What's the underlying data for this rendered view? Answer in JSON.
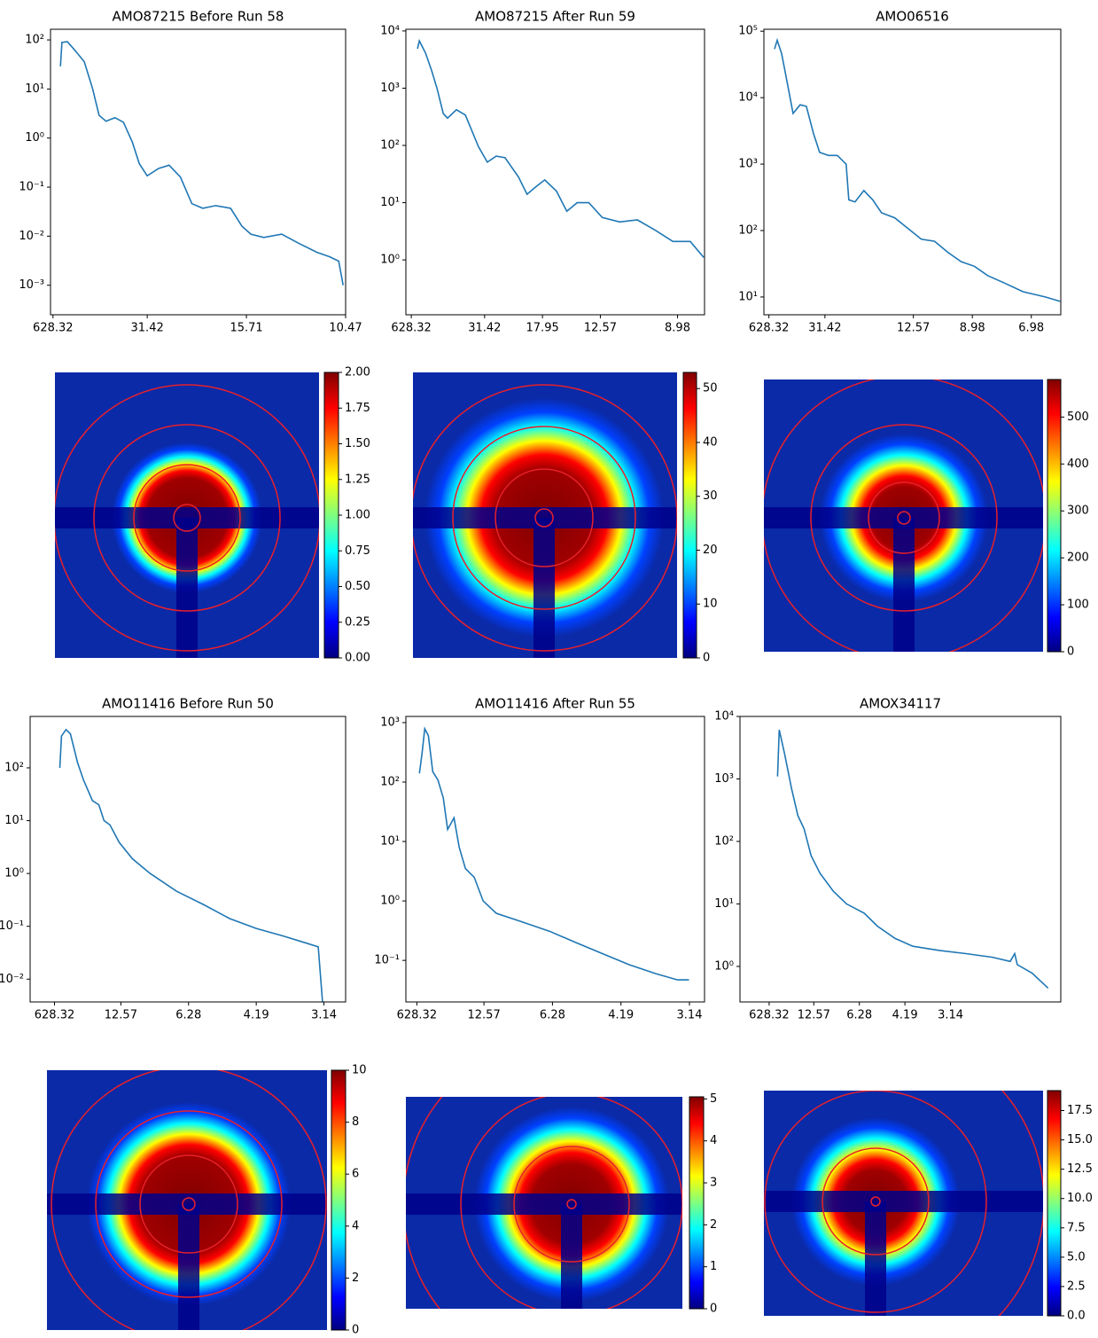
{
  "chart_data": [
    {
      "type": "line",
      "title": "AMO87215 Before Run 58",
      "color": "#1f77b4",
      "log_y": true,
      "x": [
        0.025,
        0.028,
        0.039,
        0.055,
        0.073,
        0.09,
        0.103,
        0.117,
        0.135,
        0.152,
        0.17,
        0.184,
        0.2,
        0.223,
        0.244,
        0.267,
        0.29,
        0.312,
        0.338,
        0.368,
        0.391,
        0.409,
        0.435,
        0.471,
        0.506,
        0.542,
        0.568,
        0.586,
        0.595
      ],
      "values": [
        29,
        89,
        92,
        60,
        36,
        10,
        2.9,
        2.2,
        2.6,
        2.1,
        0.83,
        0.3,
        0.17,
        0.24,
        0.28,
        0.16,
        0.046,
        0.037,
        0.042,
        0.037,
        0.016,
        0.011,
        0.0094,
        0.011,
        0.0071,
        0.0047,
        0.0038,
        0.0031,
        0.001
      ],
      "xlim": [
        0.005,
        0.6
      ],
      "xticks": [
        {
          "value": 0.01,
          "label": "628.32"
        },
        {
          "value": 0.2,
          "label": "31.42"
        },
        {
          "value": 0.4,
          "label": "15.71"
        },
        {
          "value": 0.6,
          "label": "10.47"
        }
      ],
      "ylim": [
        0.00025,
        165
      ],
      "yticks": [
        {
          "value": 0.001,
          "label": "10⁻³"
        },
        {
          "value": 0.01,
          "label": "10⁻²"
        },
        {
          "value": 0.1,
          "label": "10⁻¹"
        },
        {
          "value": 1,
          "label": "10⁰"
        },
        {
          "value": 10,
          "label": "10¹"
        },
        {
          "value": 100,
          "label": "10²"
        }
      ]
    },
    {
      "type": "line",
      "title": "AMO87215 After Run 59",
      "color": "#1f77b4",
      "log_y": true,
      "x": [
        0.026,
        0.031,
        0.047,
        0.063,
        0.077,
        0.093,
        0.104,
        0.127,
        0.15,
        0.184,
        0.207,
        0.23,
        0.253,
        0.288,
        0.31,
        0.333,
        0.356,
        0.386,
        0.413,
        0.44,
        0.47,
        0.505,
        0.55,
        0.596,
        0.642,
        0.688,
        0.733,
        0.768
      ],
      "values": [
        4900,
        6700,
        4100,
        2000,
        970,
        360,
        300,
        420,
        340,
        95,
        51,
        65,
        61,
        28,
        14,
        19,
        25,
        16,
        7.1,
        10,
        10,
        5.5,
        4.6,
        5,
        3.3,
        2.1,
        2.1,
        1.1
      ],
      "xlim": [
        -0.004,
        0.77
      ],
      "xticks": [
        {
          "value": 0.01,
          "label": "628.32"
        },
        {
          "value": 0.2,
          "label": "31.42"
        },
        {
          "value": 0.35,
          "label": "17.95"
        },
        {
          "value": 0.5,
          "label": "12.57"
        },
        {
          "value": 0.7,
          "label": "8.98"
        }
      ],
      "ylim": [
        0.11,
        10700
      ],
      "yticks": [
        {
          "value": 1,
          "label": "10⁰"
        },
        {
          "value": 10,
          "label": "10¹"
        },
        {
          "value": 100,
          "label": "10²"
        },
        {
          "value": 1000,
          "label": "10³"
        },
        {
          "value": 10000,
          "label": "10⁴"
        }
      ]
    },
    {
      "type": "line",
      "title": "AMO06516",
      "color": "#1f77b4",
      "log_y": true,
      "x": [
        0.029,
        0.038,
        0.053,
        0.071,
        0.092,
        0.116,
        0.137,
        0.161,
        0.182,
        0.212,
        0.242,
        0.272,
        0.281,
        0.302,
        0.332,
        0.362,
        0.392,
        0.437,
        0.482,
        0.527,
        0.572,
        0.617,
        0.662,
        0.707,
        0.752,
        0.812,
        0.872,
        0.947,
        0.998
      ],
      "values": [
        54000,
        73000,
        46000,
        18000,
        5800,
        7800,
        7400,
        2900,
        1500,
        1350,
        1350,
        1000,
        290,
        270,
        400,
        290,
        185,
        155,
        107,
        74,
        69,
        47,
        34,
        29,
        21,
        16,
        12,
        10,
        8.6
      ],
      "xlim": [
        -0.007,
        1.0
      ],
      "xticks": [
        {
          "value": 0.01,
          "label": "628.32"
        },
        {
          "value": 0.2,
          "label": "31.42"
        },
        {
          "value": 0.5,
          "label": "12.57"
        },
        {
          "value": 0.7,
          "label": "8.98"
        },
        {
          "value": 0.9,
          "label": "6.98"
        }
      ],
      "ylim": [
        5.4,
        107000
      ],
      "yticks": [
        {
          "value": 10,
          "label": "10¹"
        },
        {
          "value": 100,
          "label": "10²"
        },
        {
          "value": 1000,
          "label": "10³"
        },
        {
          "value": 10000,
          "label": "10⁴"
        },
        {
          "value": 100000,
          "label": "10⁵"
        }
      ]
    },
    {
      "type": "image",
      "colormap": "jet",
      "clim": [
        0,
        2
      ],
      "cticks": [
        {
          "value": 0,
          "label": "0.00"
        },
        {
          "value": 0.25,
          "label": "0.25"
        },
        {
          "value": 0.5,
          "label": "0.50"
        },
        {
          "value": 0.75,
          "label": "0.75"
        },
        {
          "value": 1,
          "label": "1.00"
        },
        {
          "value": 1.25,
          "label": "1.25"
        },
        {
          "value": 1.5,
          "label": "1.50"
        },
        {
          "value": 1.75,
          "label": "1.75"
        },
        {
          "value": 2,
          "label": "2.00"
        }
      ]
    },
    {
      "type": "image",
      "colormap": "jet",
      "clim": [
        0,
        53
      ],
      "cticks": [
        0,
        10,
        20,
        30,
        40,
        50
      ]
    },
    {
      "type": "image",
      "colormap": "jet",
      "clim": [
        0,
        580
      ],
      "cticks": [
        0,
        100,
        200,
        300,
        400,
        500
      ]
    },
    {
      "type": "line",
      "title": "AMO11416 Before Run 50",
      "color": "#1f77b4",
      "log_y": true,
      "x": [
        0.049,
        0.062,
        0.095,
        0.127,
        0.18,
        0.225,
        0.29,
        0.337,
        0.376,
        0.42,
        0.487,
        0.585,
        0.716,
        0.912,
        1.108,
        1.304,
        1.5,
        1.696,
        1.86,
        1.958,
        1.99
      ],
      "values": [
        100,
        400,
        530,
        440,
        126,
        58,
        24,
        20,
        10,
        8.3,
        3.9,
        1.9,
        1.0,
        0.46,
        0.26,
        0.14,
        0.091,
        0.066,
        0.049,
        0.041,
        0.0036
      ],
      "xlim": [
        -0.17,
        2.16
      ],
      "xticks": [
        {
          "value": 0.01,
          "label": "628.32"
        },
        {
          "value": 0.5,
          "label": "12.57"
        },
        {
          "value": 1,
          "label": "6.28"
        },
        {
          "value": 1.5,
          "label": "4.19"
        },
        {
          "value": 2,
          "label": "3.14"
        }
      ],
      "ylim": [
        0.0037,
        940
      ],
      "yticks": [
        {
          "value": 0.01,
          "label": "10⁻²"
        },
        {
          "value": 0.1,
          "label": "10⁻¹"
        },
        {
          "value": 1,
          "label": "10⁰"
        },
        {
          "value": 10,
          "label": "10¹"
        },
        {
          "value": 100,
          "label": "10²"
        }
      ]
    },
    {
      "type": "line",
      "title": "AMO11416 After Run 55",
      "color": "#1f77b4",
      "log_y": true,
      "x": [
        0.029,
        0.048,
        0.068,
        0.094,
        0.126,
        0.165,
        0.203,
        0.235,
        0.281,
        0.319,
        0.365,
        0.429,
        0.494,
        0.59,
        0.784,
        0.977,
        1.171,
        1.365,
        1.558,
        1.752,
        1.913,
        1.997
      ],
      "values": [
        140,
        300,
        790,
        600,
        150,
        107,
        54,
        16,
        25,
        8.1,
        3.5,
        2.5,
        1.0,
        0.62,
        0.44,
        0.31,
        0.2,
        0.13,
        0.085,
        0.06,
        0.047,
        0.047
      ],
      "xlim": [
        -0.07,
        2.11
      ],
      "xticks": [
        {
          "value": 0.01,
          "label": "628.32"
        },
        {
          "value": 0.5,
          "label": "12.57"
        },
        {
          "value": 1,
          "label": "6.28"
        },
        {
          "value": 1.5,
          "label": "4.19"
        },
        {
          "value": 2,
          "label": "3.14"
        }
      ],
      "ylim": [
        0.02,
        1270
      ],
      "yticks": [
        {
          "value": 0.1,
          "label": "10⁻¹"
        },
        {
          "value": 1,
          "label": "10⁰"
        },
        {
          "value": 10,
          "label": "10¹"
        },
        {
          "value": 100,
          "label": "10²"
        },
        {
          "value": 1000,
          "label": "10³"
        }
      ]
    },
    {
      "type": "line",
      "title": "AMOX34117",
      "color": "#1f77b4",
      "log_y": true,
      "x": [
        0.102,
        0.121,
        0.18,
        0.257,
        0.325,
        0.393,
        0.471,
        0.568,
        0.714,
        0.859,
        1.053,
        1.199,
        1.393,
        1.587,
        1.879,
        2.17,
        2.461,
        2.655,
        2.704,
        2.733,
        2.896,
        3.071
      ],
      "values": [
        1100,
        6100,
        2500,
        690,
        260,
        160,
        59,
        31,
        16,
        10,
        7.1,
        4.4,
        2.8,
        2.1,
        1.8,
        1.6,
        1.4,
        1.2,
        1.6,
        1.07,
        0.78,
        0.45
      ],
      "xlim": [
        -0.31,
        3.21
      ],
      "xticks": [
        {
          "value": 0.01,
          "label": "628.32"
        },
        {
          "value": 0.5,
          "label": "12.57"
        },
        {
          "value": 1,
          "label": "6.28"
        },
        {
          "value": 1.5,
          "label": "4.19"
        },
        {
          "value": 2,
          "label": "3.14"
        }
      ],
      "ylim": [
        0.27,
        10000
      ],
      "yticks": [
        {
          "value": 1,
          "label": "10⁰"
        },
        {
          "value": 10,
          "label": "10¹"
        },
        {
          "value": 100,
          "label": "10²"
        },
        {
          "value": 1000,
          "label": "10³"
        },
        {
          "value": 10000,
          "label": "10⁴"
        }
      ]
    },
    {
      "type": "image",
      "colormap": "jet",
      "clim": [
        0,
        10
      ],
      "cticks": [
        0,
        2,
        4,
        6,
        8,
        10
      ]
    },
    {
      "type": "image",
      "colormap": "jet",
      "clim": [
        0,
        5.05
      ],
      "cticks": [
        0,
        1,
        2,
        3,
        4,
        5
      ]
    },
    {
      "type": "image",
      "colormap": "jet",
      "clim": [
        0,
        19.2
      ],
      "cticks": [
        {
          "value": 0,
          "label": "0.0"
        },
        2.5,
        {
          "value": 5,
          "label": "5.0"
        },
        7.5,
        {
          "value": 10,
          "label": "10.0"
        },
        12.5,
        {
          "value": 15,
          "label": "15.0"
        },
        17.5
      ]
    }
  ]
}
